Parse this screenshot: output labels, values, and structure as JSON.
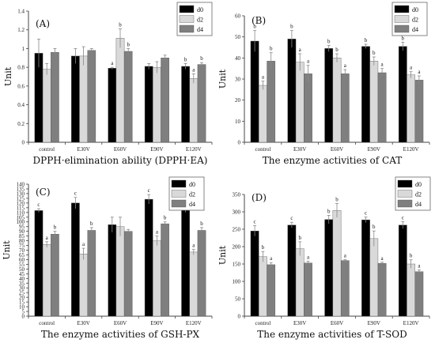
{
  "legend": [
    "d0",
    "d2",
    "d4"
  ],
  "colors": {
    "d0": "#000000",
    "d2": "#d9d9d9",
    "d4": "#7f7f7f",
    "axis": "#444444",
    "errorbar": "#888888"
  },
  "chart_data": [
    {
      "type": "bar",
      "panel": "(A)",
      "caption": "DPPH·elimination ability (DPPH·EA)",
      "ylabel": "Unit",
      "categories": [
        "control",
        "E30V",
        "E60V",
        "E90V",
        "E120V"
      ],
      "ylim": [
        0,
        1.4
      ],
      "yticks": [
        0,
        0.2,
        0.4,
        0.6,
        0.8,
        1.0,
        1.2,
        1.4
      ],
      "legend_position": "top-right",
      "series": [
        {
          "name": "d0",
          "values": [
            0.95,
            0.92,
            0.79,
            0.81,
            0.81
          ],
          "errors": [
            0.15,
            0.08,
            0.01,
            0.03,
            0.03
          ],
          "labels": [
            "",
            "",
            "a",
            "",
            "b"
          ]
        },
        {
          "name": "d2",
          "values": [
            0.78,
            0.92,
            1.11,
            0.8,
            0.68
          ],
          "errors": [
            0.06,
            0.1,
            0.1,
            0.06,
            0.05
          ],
          "labels": [
            "",
            "",
            "b",
            "",
            "a"
          ]
        },
        {
          "name": "d4",
          "values": [
            0.96,
            0.98,
            0.97,
            0.9,
            0.83
          ],
          "errors": [
            0.04,
            0.02,
            0.03,
            0.03,
            0.02
          ],
          "labels": [
            "",
            "",
            "b",
            "",
            "b"
          ]
        }
      ]
    },
    {
      "type": "bar",
      "panel": "(B)",
      "caption": "The enzyme activities of CAT",
      "ylabel": "Unit",
      "categories": [
        "control",
        "E30V",
        "E60V",
        "E90V",
        "E120V"
      ],
      "ylim": [
        0,
        60
      ],
      "yticks": [
        0,
        10,
        20,
        30,
        40,
        50,
        60
      ],
      "legend_position": "top-right",
      "series": [
        {
          "name": "d0",
          "values": [
            48,
            49,
            44.5,
            45.5,
            45.5
          ],
          "errors": [
            5,
            4,
            1.5,
            1,
            2
          ],
          "labels": [
            "b",
            "b",
            "b",
            "b",
            "b"
          ]
        },
        {
          "name": "d2",
          "values": [
            27,
            38,
            40,
            38.5,
            32
          ],
          "errors": [
            2,
            4,
            2,
            2,
            1.5
          ],
          "labels": [
            "a",
            "a",
            "b",
            "b",
            "a"
          ]
        },
        {
          "name": "d4",
          "values": [
            38.5,
            32.5,
            32.5,
            33,
            29.5
          ],
          "errors": [
            4,
            4,
            2,
            2,
            2
          ],
          "labels": [
            "b",
            "a",
            "a",
            "a",
            "a"
          ]
        }
      ]
    },
    {
      "type": "bar",
      "panel": "(C)",
      "caption": "The enzyme activities of GSH-PX",
      "ylabel": "Unit",
      "categories": [
        "control",
        "E30V",
        "E60V",
        "E90V",
        "E120V"
      ],
      "ylim": [
        0,
        140
      ],
      "yticks": [
        0,
        5,
        10,
        15,
        20,
        25,
        30,
        35,
        40,
        45,
        50,
        55,
        60,
        65,
        70,
        75,
        80,
        85,
        90,
        95,
        100,
        105,
        110,
        115,
        120,
        125,
        130,
        135,
        140
      ],
      "legend_position": "top-right",
      "series": [
        {
          "name": "d0",
          "values": [
            112,
            120,
            97,
            124,
            115
          ],
          "errors": [
            2,
            6,
            8,
            5,
            5
          ],
          "labels": [
            "c",
            "c",
            "",
            "c",
            "c"
          ]
        },
        {
          "name": "d2",
          "values": [
            76,
            66,
            95,
            80,
            68
          ],
          "errors": [
            3,
            6,
            10,
            5,
            3
          ],
          "labels": [
            "a",
            "a",
            "",
            "a",
            "a"
          ]
        },
        {
          "name": "d4",
          "values": [
            87,
            91,
            90,
            98,
            91
          ],
          "errors": [
            3,
            3,
            2,
            2,
            3
          ],
          "labels": [
            "b",
            "b",
            "",
            "b",
            "b"
          ]
        }
      ]
    },
    {
      "type": "bar",
      "panel": "(D)",
      "caption": "The enzyme activities of  T-SOD",
      "ylabel": "Unit",
      "categories": [
        "control",
        "E30V",
        "E60V",
        "E90V",
        "E120V"
      ],
      "ylim": [
        0,
        350
      ],
      "yticks": [
        0,
        50,
        100,
        150,
        200,
        250,
        300,
        350
      ],
      "legend_position": "top-right",
      "series": [
        {
          "name": "d0",
          "values": [
            245,
            262,
            278,
            277,
            262
          ],
          "errors": [
            15,
            8,
            12,
            8,
            10
          ],
          "labels": [
            "c",
            "c",
            "b",
            "c",
            "c"
          ]
        },
        {
          "name": "d2",
          "values": [
            171,
            194,
            304,
            223,
            150
          ],
          "errors": [
            15,
            20,
            20,
            22,
            12
          ],
          "labels": [
            "b",
            "b",
            "b",
            "b",
            "b"
          ]
        },
        {
          "name": "d4",
          "values": [
            148,
            153,
            160,
            152,
            128
          ],
          "errors": [
            6,
            5,
            3,
            3,
            5
          ],
          "labels": [
            "a",
            "a",
            "a",
            "a",
            "a"
          ]
        }
      ]
    }
  ]
}
